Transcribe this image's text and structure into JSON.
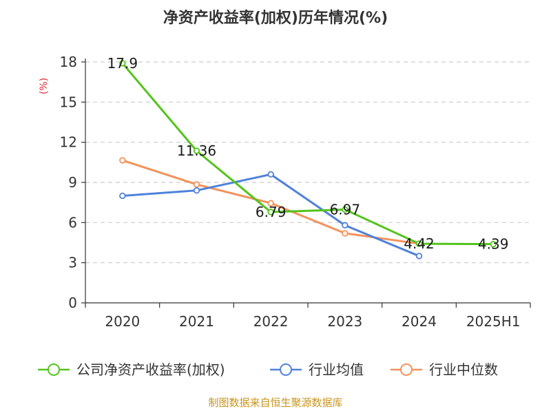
{
  "chart_data": {
    "type": "line",
    "title": "净资产收益率(加权)历年情况(%)",
    "ylabel": "(%)",
    "ylim": [
      0,
      18
    ],
    "yticks": [
      0,
      3,
      6,
      9,
      12,
      15,
      18
    ],
    "categories": [
      "2020",
      "2021",
      "2022",
      "2023",
      "2024",
      "2025H1"
    ],
    "grid": true,
    "legend_position": "bottom",
    "series": [
      {
        "name": "公司净资产收益率(加权)",
        "color": "#52c41a",
        "values": [
          17.9,
          11.36,
          6.79,
          6.97,
          4.42,
          4.39
        ],
        "labels": [
          "17.9",
          "11.36",
          "6.79",
          "6.97",
          "4.42",
          "4.39"
        ]
      },
      {
        "name": "行业均值",
        "color": "#4f81dc",
        "values": [
          8.0,
          8.4,
          9.6,
          5.8,
          3.5,
          null
        ]
      },
      {
        "name": "行业中位数",
        "color": "#f5915a",
        "values": [
          10.65,
          8.85,
          7.45,
          5.2,
          4.42,
          null
        ]
      }
    ]
  },
  "source_text": "制图数据来自恒生聚源数据库"
}
